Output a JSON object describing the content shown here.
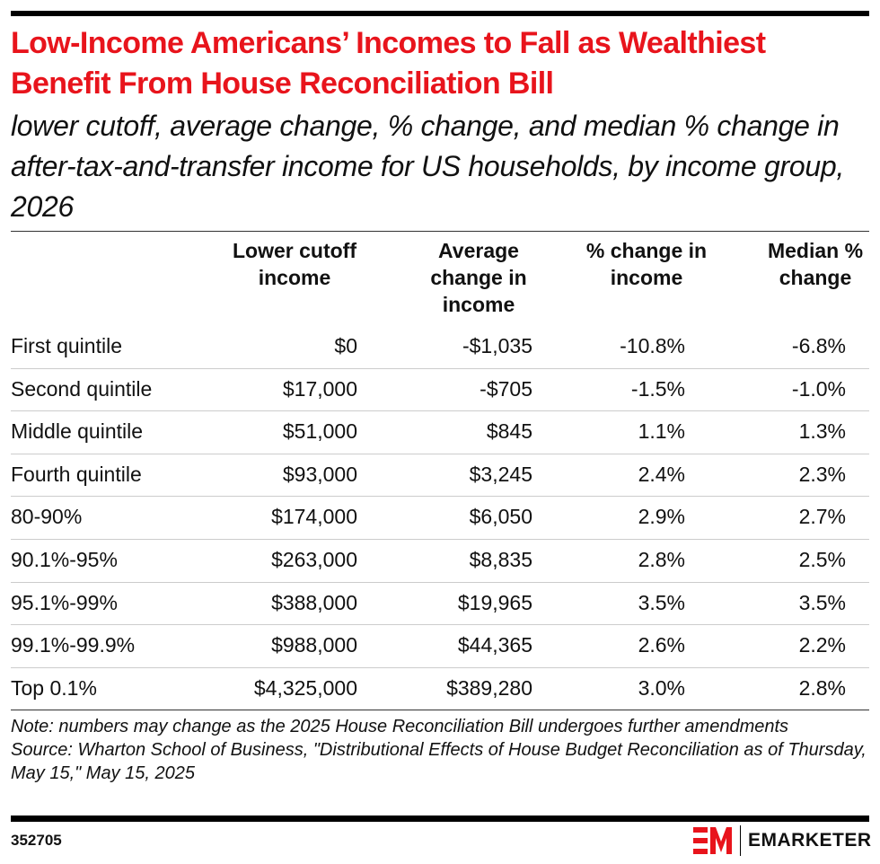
{
  "title": "Low-Income Americans’ Incomes to Fall as Wealthiest Benefit From House Reconciliation Bill",
  "subtitle": "lower cutoff, average change, % change, and median % change in after-tax-and-transfer income for US households, by income group, 2026",
  "chart_data": {
    "type": "table",
    "columns": [
      "Lower cutoff income",
      "Average change in income",
      "% change in income",
      "Median % change"
    ],
    "rows": [
      {
        "label": "First quintile",
        "values": [
          "$0",
          "-$1,035",
          "-10.8%",
          "-6.8%"
        ]
      },
      {
        "label": "Second quintile",
        "values": [
          "$17,000",
          "-$705",
          "-1.5%",
          "-1.0%"
        ]
      },
      {
        "label": "Middle quintile",
        "values": [
          "$51,000",
          "$845",
          "1.1%",
          "1.3%"
        ]
      },
      {
        "label": "Fourth quintile",
        "values": [
          "$93,000",
          "$3,245",
          "2.4%",
          "2.3%"
        ]
      },
      {
        "label": "80-90%",
        "values": [
          "$174,000",
          "$6,050",
          "2.9%",
          "2.7%"
        ]
      },
      {
        "label": "90.1%-95%",
        "values": [
          "$263,000",
          "$8,835",
          "2.8%",
          "2.5%"
        ]
      },
      {
        "label": "95.1%-99%",
        "values": [
          "$388,000",
          "$19,965",
          "3.5%",
          "3.5%"
        ]
      },
      {
        "label": "99.1%-99.9%",
        "values": [
          "$988,000",
          "$44,365",
          "2.6%",
          "2.2%"
        ]
      },
      {
        "label": "Top 0.1%",
        "values": [
          "$4,325,000",
          "$389,280",
          "3.0%",
          "2.8%"
        ]
      }
    ]
  },
  "note": "Note: numbers may change as the 2025 House Reconciliation Bill undergoes further amendments",
  "source": "Source: Wharton School of Business, \"Distributional Effects of House Budget Reconciliation as of Thursday, May 15,\" May 15, 2025",
  "footer": {
    "chart_id": "352705",
    "brand": "EMARKETER",
    "brand_color": "#e8141c"
  }
}
